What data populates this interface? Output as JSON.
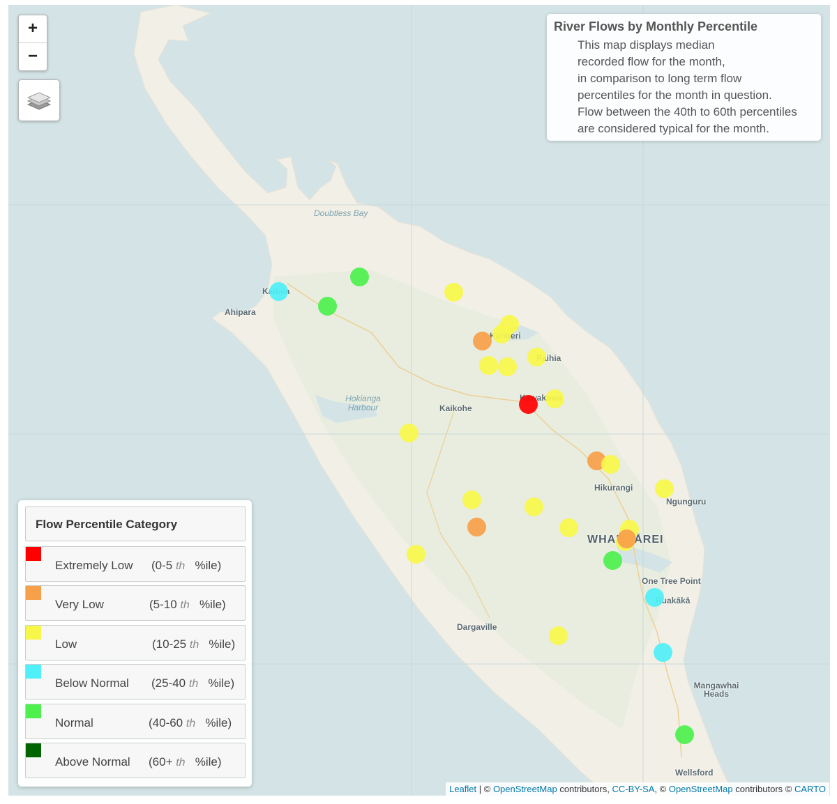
{
  "map": {
    "places": [
      {
        "name": "Doubtless Bay",
        "kind": "water"
      },
      {
        "name": "Kaitaia",
        "kind": "town"
      },
      {
        "name": "Ahipara",
        "kind": "town"
      },
      {
        "name": "Kerikeri",
        "kind": "town"
      },
      {
        "name": "Paihia",
        "kind": "town"
      },
      {
        "name": "Kawakawa",
        "kind": "town"
      },
      {
        "name": "Hokianga Harbour",
        "kind": "water"
      },
      {
        "name": "Kaikohe",
        "kind": "town"
      },
      {
        "name": "Hikurangi",
        "kind": "town"
      },
      {
        "name": "Ngunguru",
        "kind": "town"
      },
      {
        "name": "WHANGĀREI",
        "kind": "city"
      },
      {
        "name": "One Tree Point",
        "kind": "town"
      },
      {
        "name": "Ruakākā",
        "kind": "town"
      },
      {
        "name": "Dargaville",
        "kind": "town"
      },
      {
        "name": "Mangawhai Heads",
        "kind": "town"
      },
      {
        "name": "Wellsford",
        "kind": "town"
      }
    ]
  },
  "zoom": {
    "in_label": "+",
    "out_label": "−"
  },
  "layers_icon": "layers-icon",
  "info": {
    "title": "River Flows by Monthly Percentile",
    "lines": [
      "This map displays median",
      "recorded flow for the month,",
      "in comparison to long term flow",
      "percentiles for the month in question.",
      "Flow between the 40th to 60th percentiles",
      "are considered typical for the month."
    ]
  },
  "legend": {
    "title": "Flow Percentile Category",
    "items": [
      {
        "name": "Extremely Low",
        "range_a": "(0-5",
        "th": "th",
        "range_b": "%ile)",
        "color": "#ff0000"
      },
      {
        "name": "Very Low",
        "range_a": "(5-10",
        "th": "th",
        "range_b": "%ile)",
        "color": "#f7a04a"
      },
      {
        "name": "Low",
        "range_a": "(10-25",
        "th": "th",
        "range_b": "%ile)",
        "color": "#f7f74a"
      },
      {
        "name": "Below Normal",
        "range_a": "(25-40",
        "th": "th",
        "range_b": "%ile)",
        "color": "#4ff0f7"
      },
      {
        "name": "Normal",
        "range_a": "(40-60",
        "th": "th",
        "range_b": "%ile)",
        "color": "#4df04d"
      },
      {
        "name": "Above Normal",
        "range_a": "(60+",
        "th": "th",
        "range_b": "%ile)",
        "color": "#006400"
      }
    ]
  },
  "sites": [
    {
      "category": "Below Normal"
    },
    {
      "category": "Normal"
    },
    {
      "category": "Normal"
    },
    {
      "category": "Low"
    },
    {
      "category": "Low"
    },
    {
      "category": "Low"
    },
    {
      "category": "Very Low"
    },
    {
      "category": "Low"
    },
    {
      "category": "Low"
    },
    {
      "category": "Low"
    },
    {
      "category": "Extremely Low"
    },
    {
      "category": "Low"
    },
    {
      "category": "Low"
    },
    {
      "category": "Very Low"
    },
    {
      "category": "Low"
    },
    {
      "category": "Low"
    },
    {
      "category": "Low"
    },
    {
      "category": "Low"
    },
    {
      "category": "Very Low"
    },
    {
      "category": "Low"
    },
    {
      "category": "Low"
    },
    {
      "category": "Low"
    },
    {
      "category": "Very Low"
    },
    {
      "category": "Normal"
    },
    {
      "category": "Low"
    },
    {
      "category": "Below Normal"
    },
    {
      "category": "Low"
    },
    {
      "category": "Below Normal"
    },
    {
      "category": "Normal"
    }
  ],
  "attribution": {
    "leaflet": "Leaflet",
    "sep1": " | © ",
    "osm1": "OpenStreetMap",
    "mid1": " contributors, ",
    "ccbysa": "CC-BY-SA",
    "sep2": ", © ",
    "osm2": "OpenStreetMap",
    "mid2": " contributors © ",
    "carto": "CARTO"
  }
}
